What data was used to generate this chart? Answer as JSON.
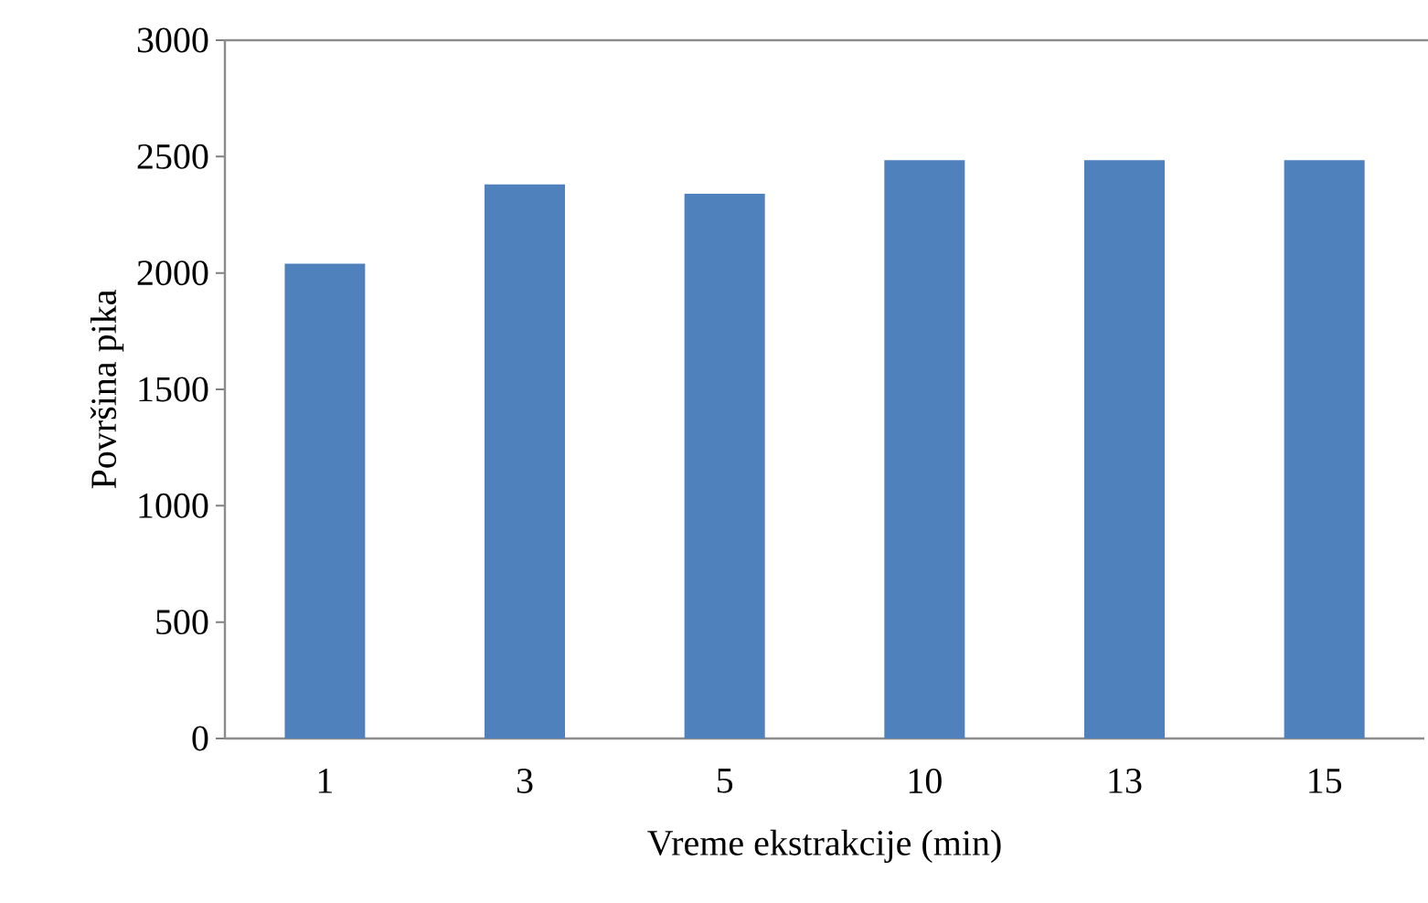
{
  "chart_data": {
    "type": "bar",
    "xlabel": "Vreme ekstrakcije (min)",
    "ylabel": "Površina pika",
    "categories": [
      "1",
      "3",
      "5",
      "10",
      "13",
      "15"
    ],
    "values": [
      2040,
      2380,
      2340,
      2485,
      2485,
      2485
    ],
    "color": "#4f81bd",
    "ylim": [
      0,
      3000
    ],
    "yticks": [
      0,
      500,
      1000,
      1500,
      2000,
      2500,
      3000
    ],
    "grid": false
  }
}
